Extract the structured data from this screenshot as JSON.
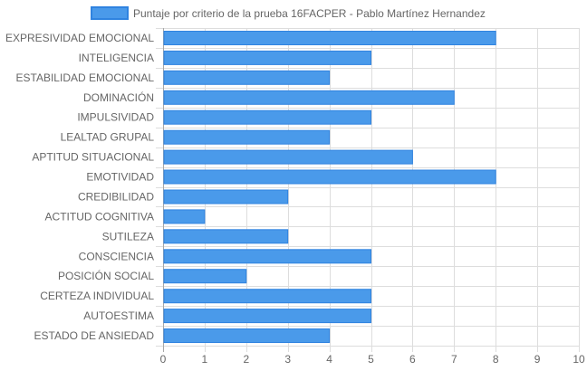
{
  "colors": {
    "bar_fill": "#4a9aea",
    "bar_stroke": "#2f83e0",
    "grid": "#dddddd",
    "axis_dark": "#a8a8a8",
    "text": "#666666"
  },
  "chart_data": {
    "type": "bar",
    "orientation": "horizontal",
    "legend": {
      "label": "Puntaje por criterio de la prueba 16FACPER - Pablo Martínez Hernandez",
      "position": "top"
    },
    "categories": [
      "EXPRESIVIDAD EMOCIONAL",
      "INTELIGENCIA",
      "ESTABILIDAD EMOCIONAL",
      "DOMINACIÓN",
      "IMPULSIVIDAD",
      "LEALTAD GRUPAL",
      "APTITUD SITUACIONAL",
      "EMOTIVIDAD",
      "CREDIBILIDAD",
      "ACTITUD COGNITIVA",
      "SUTILEZA",
      "CONSCIENCIA",
      "POSICIÓN SOCIAL",
      "CERTEZA INDIVIDUAL",
      "AUTOESTIMA",
      "ESTADO DE ANSIEDAD"
    ],
    "series": [
      {
        "name": "Puntaje por criterio de la prueba 16FACPER - Pablo Martínez Hernandez",
        "values": [
          8,
          5,
          4,
          7,
          5,
          4,
          6,
          8,
          3,
          1,
          3,
          5,
          2,
          5,
          5,
          4
        ]
      }
    ],
    "xlim": [
      0,
      10
    ],
    "xticks": [
      "0",
      "1",
      "2",
      "3",
      "4",
      "5",
      "6",
      "7",
      "8",
      "9",
      "10"
    ],
    "grid": true
  }
}
